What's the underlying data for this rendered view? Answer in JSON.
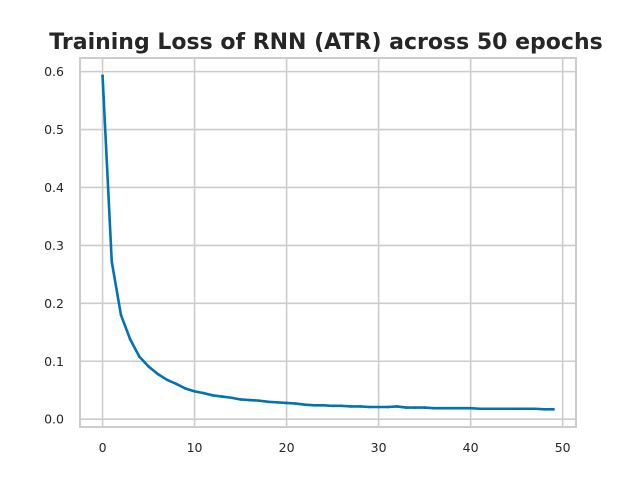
{
  "chart_data": {
    "type": "line",
    "title": "Training Loss of RNN (ATR) across 50 epochs",
    "xlabel": "",
    "ylabel": "",
    "xlim": [
      -2.45,
      51.45
    ],
    "ylim": [
      -0.0135,
      0.6235
    ],
    "xticks": [
      0,
      10,
      20,
      30,
      40,
      50
    ],
    "yticks": [
      0.0,
      0.1,
      0.2,
      0.3,
      0.4,
      0.5,
      0.6
    ],
    "ytick_labels": [
      "0.0",
      "0.1",
      "0.2",
      "0.3",
      "0.4",
      "0.5",
      "0.6"
    ],
    "grid": true,
    "series": [
      {
        "color": "#0173b2",
        "x": [
          0,
          1,
          2,
          3,
          4,
          5,
          6,
          7,
          8,
          9,
          10,
          11,
          12,
          13,
          14,
          15,
          16,
          17,
          18,
          19,
          20,
          21,
          22,
          23,
          24,
          25,
          26,
          27,
          28,
          29,
          30,
          31,
          32,
          33,
          34,
          35,
          36,
          37,
          38,
          39,
          40,
          41,
          42,
          43,
          44,
          45,
          46,
          47,
          48,
          49
        ],
        "values": [
          0.593,
          0.272,
          0.18,
          0.138,
          0.108,
          0.091,
          0.078,
          0.068,
          0.061,
          0.053,
          0.048,
          0.045,
          0.041,
          0.039,
          0.037,
          0.034,
          0.033,
          0.032,
          0.03,
          0.029,
          0.028,
          0.027,
          0.025,
          0.024,
          0.024,
          0.023,
          0.023,
          0.022,
          0.022,
          0.021,
          0.021,
          0.021,
          0.022,
          0.02,
          0.02,
          0.02,
          0.019,
          0.019,
          0.019,
          0.019,
          0.019,
          0.018,
          0.018,
          0.018,
          0.018,
          0.018,
          0.018,
          0.018,
          0.017,
          0.017
        ]
      }
    ]
  }
}
